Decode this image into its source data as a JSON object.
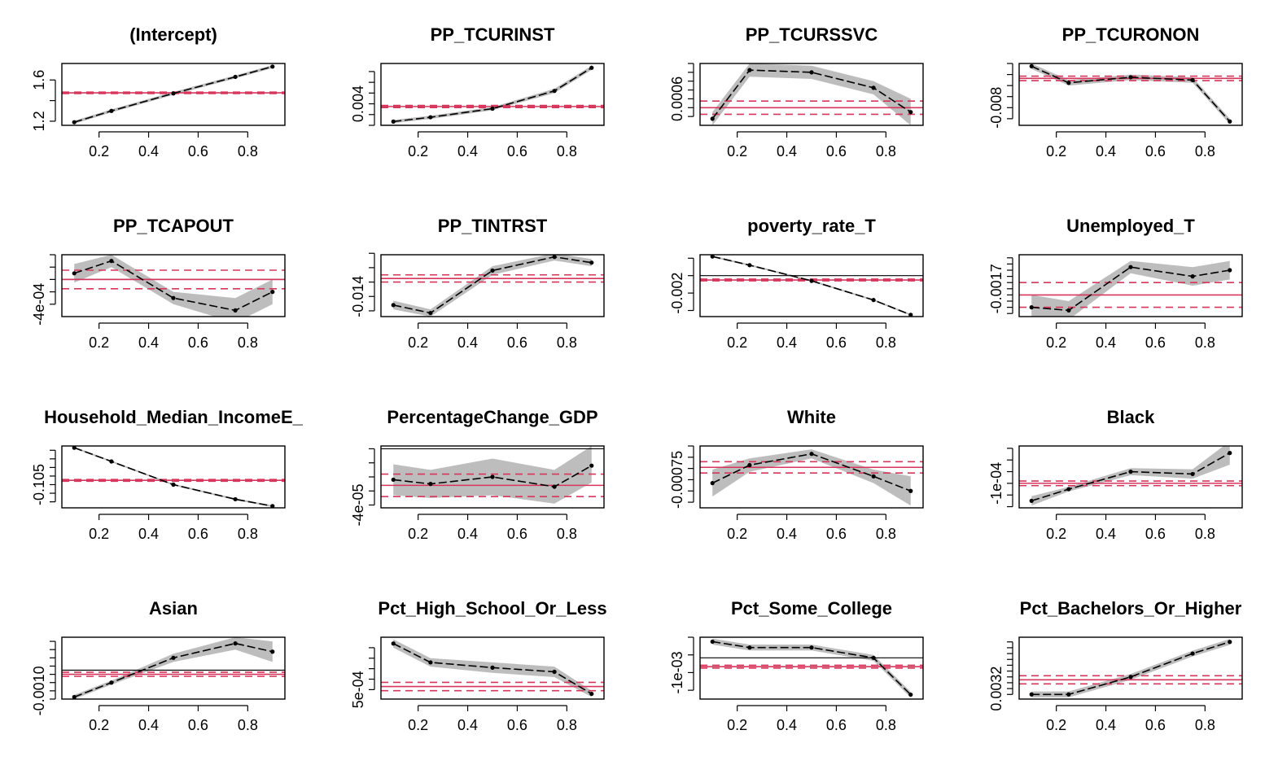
{
  "colors": {
    "band": "#bdbdbd",
    "line": "#000000",
    "ols": "#d6365c",
    "zero": "#000000"
  },
  "chart_data": [
    {
      "type": "line",
      "title": "(Intercept)",
      "x": [
        0.1,
        0.25,
        0.5,
        0.75,
        0.9
      ],
      "values": [
        1.19,
        1.3,
        1.47,
        1.63,
        1.73
      ],
      "lower": [
        1.175,
        1.285,
        1.455,
        1.615,
        1.715
      ],
      "upper": [
        1.205,
        1.315,
        1.485,
        1.645,
        1.745
      ],
      "ols": 1.475,
      "ols_lower": 1.468,
      "ols_upper": 1.482,
      "ylim": [
        1.16,
        1.76
      ],
      "yticks": [
        1.2,
        1.4,
        1.6
      ],
      "ylabels": [
        "1.2",
        "",
        "1.6"
      ],
      "show_zero": false
    },
    {
      "type": "line",
      "title": "PP_TCURINST",
      "x": [
        0.1,
        0.25,
        0.5,
        0.75,
        0.9
      ],
      "values": [
        0.0007,
        0.0015,
        0.0031,
        0.0064,
        0.0107
      ],
      "lower": [
        0.0004,
        0.0012,
        0.0028,
        0.006,
        0.0103
      ],
      "upper": [
        0.001,
        0.0018,
        0.0034,
        0.0068,
        0.0111
      ],
      "ols": 0.0035,
      "ols_lower": 0.0033,
      "ols_upper": 0.0037,
      "ylim": [
        0.0,
        0.0115
      ],
      "yticks": [
        0.0,
        0.002,
        0.004,
        0.006,
        0.008,
        0.01
      ],
      "ylabels": [
        "",
        "",
        "0.004",
        "",
        "",
        ""
      ],
      "show_zero": true
    },
    {
      "type": "line",
      "title": "PP_TCURSSVC",
      "x": [
        0.1,
        0.25,
        0.5,
        0.75,
        0.9
      ],
      "values": [
        0.00015,
        0.00125,
        0.0012,
        0.00085,
        0.0003
      ],
      "lower": [
        0.0,
        0.0011,
        0.00105,
        0.0007,
        0.0
      ],
      "upper": [
        0.0003,
        0.0014,
        0.00135,
        0.001,
        0.0006
      ],
      "ols": 0.0004,
      "ols_lower": 0.00025,
      "ols_upper": 0.00055,
      "ylim": [
        0.0,
        0.0014
      ],
      "yticks": [
        0.0002,
        0.0004,
        0.0006,
        0.0008,
        0.001,
        0.0012,
        0.0014
      ],
      "ylabels": [
        "",
        "",
        "0.0006",
        "",
        "",
        "",
        ""
      ],
      "show_zero": false
    },
    {
      "type": "line",
      "title": "PP_TCURONON",
      "x": [
        0.1,
        0.25,
        0.5,
        0.75,
        0.9
      ],
      "values": [
        -0.0005,
        -0.0035,
        -0.0025,
        -0.003,
        -0.0105
      ],
      "lower": [
        -0.001,
        -0.004,
        -0.003,
        -0.0035,
        -0.011
      ],
      "upper": [
        0.0,
        -0.003,
        -0.002,
        -0.0025,
        -0.01
      ],
      "ols": -0.0027,
      "ols_lower": -0.0031,
      "ols_upper": -0.0023,
      "ylim": [
        -0.0112,
        0.0
      ],
      "yticks": [
        -0.01,
        -0.008,
        -0.006,
        -0.004,
        -0.002,
        0.0
      ],
      "ylabels": [
        "",
        "-0.008",
        "",
        "",
        "",
        ""
      ],
      "show_zero": false
    },
    {
      "type": "line",
      "title": "PP_TCAPOUT",
      "x": [
        0.1,
        0.25,
        0.5,
        0.75,
        0.9
      ],
      "values": [
        0.0001,
        0.0003,
        -0.0003,
        -0.0005,
        -0.0002
      ],
      "lower": [
        -5e-05,
        0.0002,
        -0.0004,
        -0.0007,
        -0.0004
      ],
      "upper": [
        0.00025,
        0.0004,
        -0.0002,
        -0.0003,
        0.0
      ],
      "ols": 0.0,
      "ols_lower": -0.00015,
      "ols_upper": 0.00015,
      "ylim": [
        -0.0006,
        0.0004
      ],
      "yticks": [
        -0.0004,
        -0.0002,
        0.0,
        0.0002,
        0.0004
      ],
      "ylabels": [
        "-4e-04",
        "",
        "",
        "",
        ""
      ],
      "show_zero": true
    },
    {
      "type": "line",
      "title": "PP_TINTRST",
      "x": [
        0.1,
        0.25,
        0.5,
        0.75,
        0.9
      ],
      "values": [
        -0.0152,
        -0.0163,
        -0.0104,
        -0.0085,
        -0.0093
      ],
      "lower": [
        -0.0158,
        -0.0168,
        -0.011,
        -0.009,
        -0.0098
      ],
      "upper": [
        -0.0146,
        -0.0158,
        -0.0098,
        -0.008,
        -0.0088
      ],
      "ols": -0.0115,
      "ols_lower": -0.012,
      "ols_upper": -0.011,
      "ylim": [
        -0.0168,
        -0.0082
      ],
      "yticks": [
        -0.016,
        -0.014,
        -0.012,
        -0.01,
        -0.008
      ],
      "ylabels": [
        "",
        "-0.014",
        "",
        "",
        ""
      ],
      "show_zero": false
    },
    {
      "type": "line",
      "title": "poverty_rate_T",
      "x": [
        0.1,
        0.25,
        0.5,
        0.75,
        0.9
      ],
      "values": [
        0.0022,
        0.0012,
        -0.0006,
        -0.0028,
        -0.0045
      ],
      "lower": [
        0.0021,
        0.0011,
        -0.0007,
        -0.0029,
        -0.0046
      ],
      "upper": [
        0.0023,
        0.0013,
        -0.0005,
        -0.0027,
        -0.0044
      ],
      "ols": -0.0005,
      "ols_lower": -0.0006,
      "ols_upper": -0.0004,
      "ylim": [
        -0.0047,
        0.0024
      ],
      "yticks": [
        -0.004,
        -0.002,
        0.0,
        0.002
      ],
      "ylabels": [
        "",
        "-0.002",
        "",
        ""
      ],
      "show_zero": true
    },
    {
      "type": "line",
      "title": "Unemployed_T",
      "x": [
        0.1,
        0.25,
        0.5,
        0.75,
        0.9
      ],
      "values": [
        -0.0023,
        -0.0024,
        -0.001,
        -0.0013,
        -0.0011
      ],
      "lower": [
        -0.0027,
        -0.0027,
        -0.0012,
        -0.0016,
        -0.0014
      ],
      "upper": [
        -0.0019,
        -0.0021,
        -0.0008,
        -0.001,
        -0.0008
      ],
      "ols": -0.0019,
      "ols_lower": -0.0023,
      "ols_upper": -0.0015,
      "ylim": [
        -0.0026,
        -0.0006
      ],
      "yticks": [
        -0.0025,
        -0.0023,
        -0.0021,
        -0.0019,
        -0.0017,
        -0.0015,
        -0.0013,
        -0.0011,
        -0.0009,
        -0.0007
      ],
      "ylabels": [
        "",
        "",
        "",
        "",
        "-0.0017",
        "",
        "",
        "",
        "",
        ""
      ],
      "show_zero": true
    },
    {
      "type": "line",
      "title": "Household_Median_IncomeE_",
      "x": [
        0.1,
        0.25,
        0.5,
        0.75,
        0.9
      ],
      "values": [
        -0.062,
        -0.078,
        -0.105,
        -0.122,
        -0.13
      ],
      "lower": [
        -0.063,
        -0.079,
        -0.106,
        -0.123,
        -0.131
      ],
      "upper": [
        -0.061,
        -0.077,
        -0.104,
        -0.121,
        -0.129
      ],
      "ols": -0.1,
      "ols_lower": -0.101,
      "ols_upper": -0.099,
      "ylim": [
        -0.132,
        -0.06
      ],
      "yticks": [
        -0.125,
        -0.115,
        -0.105,
        -0.095,
        -0.085,
        -0.075,
        -0.065
      ],
      "ylabels": [
        "",
        "",
        "-0.105",
        "",
        "",
        "",
        ""
      ],
      "show_zero": false
    },
    {
      "type": "line",
      "title": "PercentageChange_GDP",
      "x": [
        0.1,
        0.25,
        0.5,
        0.75,
        0.9
      ],
      "values": [
        -2.2e-05,
        -2.5e-05,
        -2e-05,
        -2.7e-05,
        -1.2e-05
      ],
      "lower": [
        -3.3e-05,
        -3.5e-05,
        -3.3e-05,
        -3.9e-05,
        -2.4e-05
      ],
      "upper": [
        -1.1e-05,
        -1.5e-05,
        -7e-06,
        -1.5e-05,
        2e-06
      ],
      "ols": -2.6e-05,
      "ols_lower": -3.4e-05,
      "ols_upper": -1.8e-05,
      "ylim": [
        -4.2e-05,
        2e-06
      ],
      "yticks": [
        -4e-05,
        -3e-05,
        -2e-05,
        -1e-05,
        0.0
      ],
      "ylabels": [
        "-4e-05",
        "",
        "",
        "",
        ""
      ],
      "show_zero": true
    },
    {
      "type": "line",
      "title": "White",
      "x": [
        0.1,
        0.25,
        0.5,
        0.75,
        0.9
      ],
      "values": [
        -0.00078,
        -0.00062,
        -0.00052,
        -0.00072,
        -0.00085
      ],
      "lower": [
        -0.0009,
        -0.00068,
        -0.00056,
        -0.00078,
        -0.00098
      ],
      "upper": [
        -0.00066,
        -0.00056,
        -0.00048,
        -0.00066,
        -0.00072
      ],
      "ols": -0.00064,
      "ols_lower": -0.00069,
      "ols_upper": -0.00059,
      "ylim": [
        -0.001,
        -0.00045
      ],
      "yticks": [
        -0.00095,
        -0.00085,
        -0.00075,
        -0.00065,
        -0.00055,
        -0.00045
      ],
      "ylabels": [
        "",
        "",
        "-0.00075",
        "",
        "",
        ""
      ],
      "show_zero": false
    },
    {
      "type": "line",
      "title": "Black",
      "x": [
        0.1,
        0.25,
        0.5,
        0.75,
        0.9
      ],
      "values": [
        -0.00013,
        -0.00011,
        -8e-05,
        -8.4e-05,
        -4.8e-05
      ],
      "lower": [
        -0.000138,
        -0.000114,
        -8.6e-05,
        -9.2e-05,
        -6.8e-05
      ],
      "upper": [
        -0.000122,
        -0.000106,
        -7.4e-05,
        -7.6e-05,
        -2.8e-05
      ],
      "ols": -0.0001,
      "ols_lower": -0.000104,
      "ols_upper": -9.6e-05,
      "ylim": [
        -0.000142,
        -3.6e-05
      ],
      "yticks": [
        -0.00014,
        -0.00012,
        -0.0001,
        -8e-05,
        -6e-05,
        -4e-05
      ],
      "ylabels": [
        "",
        "",
        "-1e-04",
        "",
        "",
        ""
      ],
      "show_zero": true
    },
    {
      "type": "line",
      "title": "Asian",
      "x": [
        0.1,
        0.25,
        0.5,
        0.75,
        0.9
      ],
      "values": [
        -0.0013,
        -0.0006,
        0.0006,
        0.0013,
        0.0009
      ],
      "lower": [
        -0.0014,
        -0.0007,
        0.0004,
        0.001,
        0.0004
      ],
      "upper": [
        -0.0012,
        -0.0005,
        0.0008,
        0.0016,
        0.0014
      ],
      "ols": -0.0002,
      "ols_lower": -0.0003,
      "ols_upper": -0.0001,
      "ylim": [
        -0.0014,
        0.0016
      ],
      "yticks": [
        -0.0014,
        -0.001,
        -0.0006,
        -0.0002,
        0.0002,
        0.0006,
        0.001,
        0.0014
      ],
      "ylabels": [
        "",
        "-0.0010",
        "",
        "",
        "",
        "",
        "",
        ""
      ],
      "show_zero": true
    },
    {
      "type": "line",
      "title": "Pct_High_School_Or_Less",
      "x": [
        0.1,
        0.25,
        0.5,
        0.75,
        0.9
      ],
      "values": [
        0.0049,
        0.0031,
        0.0026,
        0.0022,
        0.0001
      ],
      "lower": [
        0.0045,
        0.0027,
        0.0021,
        0.0017,
        -0.0002
      ],
      "upper": [
        0.0053,
        0.0035,
        0.0031,
        0.0027,
        0.0004
      ],
      "ols": 0.0008,
      "ols_lower": 0.0004,
      "ols_upper": 0.0012,
      "ylim": [
        -0.0004,
        0.0055
      ],
      "yticks": [
        0.0005,
        0.0015,
        0.0025,
        0.0035,
        0.0045
      ],
      "ylabels": [
        "5e-04",
        "",
        "",
        "",
        ""
      ],
      "show_zero": false
    },
    {
      "type": "line",
      "title": "Pct_Some_College",
      "x": [
        0.1,
        0.25,
        0.5,
        0.75,
        0.9
      ],
      "values": [
        0.0011,
        0.0007,
        0.0007,
        0.0,
        -0.0025
      ],
      "lower": [
        0.0009,
        0.0005,
        0.0005,
        -0.0002,
        -0.0027
      ],
      "upper": [
        0.0013,
        0.0009,
        0.0009,
        0.0002,
        -0.0023
      ],
      "ols": -0.0006,
      "ols_lower": -0.0007,
      "ols_upper": -0.0005,
      "ylim": [
        -0.0028,
        0.0014
      ],
      "yticks": [
        -0.0022,
        -0.001,
        0.0002,
        0.0014
      ],
      "ylabels": [
        "",
        "-1e-03",
        "",
        ""
      ],
      "show_zero": true
    },
    {
      "type": "line",
      "title": "Pct_Bachelors_Or_Higher",
      "x": [
        0.1,
        0.25,
        0.5,
        0.75,
        0.9
      ],
      "values": [
        0.0031,
        0.0031,
        0.0034,
        0.0038,
        0.004
      ],
      "lower": [
        0.00305,
        0.00305,
        0.00335,
        0.00375,
        0.00395
      ],
      "upper": [
        0.00315,
        0.00315,
        0.00345,
        0.00385,
        0.00405
      ],
      "ols": 0.00335,
      "ols_lower": 0.00328,
      "ols_upper": 0.00342,
      "ylim": [
        0.00302,
        0.00408
      ],
      "yticks": [
        0.0031,
        0.0032,
        0.0033,
        0.0034,
        0.0035,
        0.0036,
        0.0037,
        0.0038,
        0.0039,
        0.004
      ],
      "ylabels": [
        "",
        "0.0032",
        "",
        "",
        "",
        "",
        "",
        "",
        "",
        ""
      ],
      "show_zero": false
    }
  ],
  "shared_x": {
    "xlim": [
      0.05,
      0.95
    ],
    "ticks": [
      0.2,
      0.4,
      0.6,
      0.8
    ],
    "labels": [
      "0.2",
      "0.4",
      "0.6",
      "0.8"
    ]
  }
}
